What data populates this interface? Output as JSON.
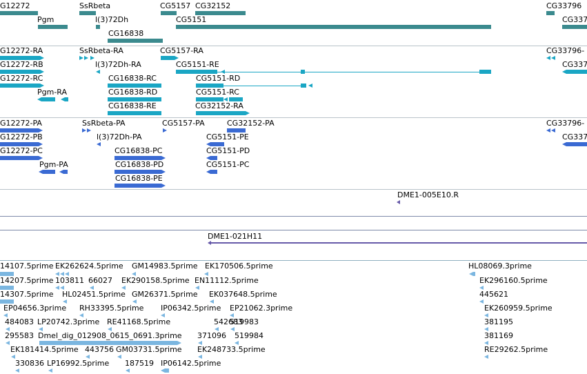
{
  "colors": {
    "genes": "#3b8a8e",
    "mrna": "#1aa6c4",
    "cds": "#3a6ad3",
    "clone": "#6659a8",
    "est": "#7bb6e0",
    "separator": "#b9c3c9"
  },
  "tracks": {
    "genes": {
      "features": [
        {
          "label": "G12272"
        },
        {
          "label": "Pgm"
        },
        {
          "label": "SsRbeta"
        },
        {
          "label": "l(3)72Dh"
        },
        {
          "label": "CG16838"
        },
        {
          "label": "CG5157"
        },
        {
          "label": "CG32152"
        },
        {
          "label": "CG5151"
        },
        {
          "label": "CG33796"
        },
        {
          "label": "CG337"
        }
      ]
    },
    "mrna": {
      "features": [
        {
          "label": "G12272-RA"
        },
        {
          "label": "G12272-RB"
        },
        {
          "label": "G12272-RC"
        },
        {
          "label": "Pgm-RA"
        },
        {
          "label": "SsRbeta-RA"
        },
        {
          "label": "l(3)72Dh-RA"
        },
        {
          "label": "CG16838-RC"
        },
        {
          "label": "CG16838-RD"
        },
        {
          "label": "CG16838-RE"
        },
        {
          "label": "CG5157-RA"
        },
        {
          "label": "CG5151-RE"
        },
        {
          "label": "CG5151-RD"
        },
        {
          "label": "CG5151-RC"
        },
        {
          "label": "CG32152-RA"
        },
        {
          "label": "CG33796-"
        },
        {
          "label": "CG337"
        }
      ]
    },
    "cds": {
      "features": [
        {
          "label": "G12272-PA"
        },
        {
          "label": "G12272-PB"
        },
        {
          "label": "G12272-PC"
        },
        {
          "label": "Pgm-PA"
        },
        {
          "label": "SsRbeta-PA"
        },
        {
          "label": "l(3)72Dh-PA"
        },
        {
          "label": "CG16838-PC"
        },
        {
          "label": "CG16838-PD"
        },
        {
          "label": "CG16838-PE"
        },
        {
          "label": "CG5157-PA"
        },
        {
          "label": "CG32152-PA"
        },
        {
          "label": "CG5151-PE"
        },
        {
          "label": "CG5151-PD"
        },
        {
          "label": "CG5151-PC"
        },
        {
          "label": "CG33796-"
        },
        {
          "label": "CG337"
        }
      ]
    },
    "clone1": {
      "features": [
        {
          "label": "DME1-005E10.R"
        }
      ]
    },
    "clone2": {
      "features": [
        {
          "label": "DME1-021H11"
        }
      ]
    },
    "est": {
      "features": [
        {
          "label": "14107.5prime"
        },
        {
          "label": "EK262624.5prime"
        },
        {
          "label": "GM14983.5prime"
        },
        {
          "label": "EK170506.5prime"
        },
        {
          "label": "HL08069.3prime"
        },
        {
          "label": "14207.5prime"
        },
        {
          "label": "103811"
        },
        {
          "label": "66027"
        },
        {
          "label": "EK290158.5prime"
        },
        {
          "label": "EN11112.5prime"
        },
        {
          "label": "EK296160.5prime"
        },
        {
          "label": "14307.5prime"
        },
        {
          "label": "HL02451.5prime"
        },
        {
          "label": "GM26371.5prime"
        },
        {
          "label": "EK037648.5prime"
        },
        {
          "label": "445621"
        },
        {
          "label": "EP04656.3prime"
        },
        {
          "label": "RH33395.5prime"
        },
        {
          "label": "IP06342.5prime"
        },
        {
          "label": "EP21062.3prime"
        },
        {
          "label": "EK260959.5prime"
        },
        {
          "label": "484083"
        },
        {
          "label": "LP20742.3prime"
        },
        {
          "label": "RE41168.5prime"
        },
        {
          "label": "542683"
        },
        {
          "label": "519983"
        },
        {
          "label": "381195"
        },
        {
          "label": "295583"
        },
        {
          "label": "Dmel_dig_012908_0615_0691.3prime"
        },
        {
          "label": "371096"
        },
        {
          "label": "519984"
        },
        {
          "label": "381169"
        },
        {
          "label": "EK181414.5prime"
        },
        {
          "label": "443756"
        },
        {
          "label": "GM03731.5prime"
        },
        {
          "label": "EK248733.5prime"
        },
        {
          "label": "RE29262.5prime"
        },
        {
          "label": "330836"
        },
        {
          "label": "LP16992.5prime"
        },
        {
          "label": "187519"
        },
        {
          "label": "IP06142.5prime"
        }
      ]
    }
  }
}
